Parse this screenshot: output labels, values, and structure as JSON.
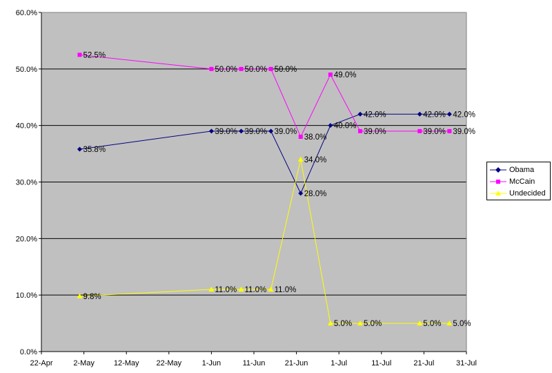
{
  "chart_data": {
    "type": "line",
    "title": "",
    "xlabel": "",
    "ylabel": "",
    "x_axis": {
      "type": "date",
      "range": [
        "2008-04-22",
        "2008-07-31"
      ],
      "ticks": [
        "2008-04-22",
        "2008-05-02",
        "2008-05-12",
        "2008-05-22",
        "2008-06-01",
        "2008-06-11",
        "2008-06-21",
        "2008-07-01",
        "2008-07-11",
        "2008-07-21",
        "2008-07-31"
      ],
      "tick_labels": [
        "22-Apr",
        "2-May",
        "12-May",
        "22-May",
        "1-Jun",
        "11-Jun",
        "21-Jun",
        "1-Jul",
        "11-Jul",
        "21-Jul",
        "31-Jul"
      ]
    },
    "y_axis": {
      "range": [
        0,
        60
      ],
      "ticks": [
        0,
        10,
        20,
        30,
        40,
        50,
        60
      ],
      "tick_labels": [
        "0.0%",
        "10.0%",
        "20.0%",
        "30.0%",
        "40.0%",
        "50.0%",
        "60.0%"
      ]
    },
    "grid": "horizontal",
    "plot_background": "#c0c0c0",
    "legend_position": "right",
    "series": [
      {
        "name": "Obama",
        "color": "#000080",
        "marker": "diamond",
        "points": [
          {
            "x": "2008-05-01",
            "y": 35.8,
            "label": "35.8%"
          },
          {
            "x": "2008-06-01",
            "y": 39.0,
            "label": "39.0%"
          },
          {
            "x": "2008-06-08",
            "y": 39.0,
            "label": "39.0%"
          },
          {
            "x": "2008-06-15",
            "y": 39.0,
            "label": "39.0%"
          },
          {
            "x": "2008-06-22",
            "y": 28.0,
            "label": "28.0%"
          },
          {
            "x": "2008-06-29",
            "y": 40.0,
            "label": "40.0%"
          },
          {
            "x": "2008-07-06",
            "y": 42.0,
            "label": "42.0%"
          },
          {
            "x": "2008-07-20",
            "y": 42.0,
            "label": "42.0%"
          },
          {
            "x": "2008-07-27",
            "y": 42.0,
            "label": "42.0%"
          }
        ]
      },
      {
        "name": "McCain",
        "color": "#ff00ff",
        "marker": "square",
        "points": [
          {
            "x": "2008-05-01",
            "y": 52.5,
            "label": "52.5%"
          },
          {
            "x": "2008-06-01",
            "y": 50.0,
            "label": "50.0%"
          },
          {
            "x": "2008-06-08",
            "y": 50.0,
            "label": "50.0%"
          },
          {
            "x": "2008-06-15",
            "y": 50.0,
            "label": "50.0%"
          },
          {
            "x": "2008-06-22",
            "y": 38.0,
            "label": "38.0%"
          },
          {
            "x": "2008-06-29",
            "y": 49.0,
            "label": "49.0%"
          },
          {
            "x": "2008-07-06",
            "y": 39.0,
            "label": "39.0%"
          },
          {
            "x": "2008-07-20",
            "y": 39.0,
            "label": "39.0%"
          },
          {
            "x": "2008-07-27",
            "y": 39.0,
            "label": "39.0%"
          }
        ]
      },
      {
        "name": "Undecided",
        "color": "#ffff00",
        "marker": "triangle",
        "points": [
          {
            "x": "2008-05-01",
            "y": 9.8,
            "label": "9.8%"
          },
          {
            "x": "2008-06-01",
            "y": 11.0,
            "label": "11.0%"
          },
          {
            "x": "2008-06-08",
            "y": 11.0,
            "label": "11.0%"
          },
          {
            "x": "2008-06-15",
            "y": 11.0,
            "label": "11.0%"
          },
          {
            "x": "2008-06-22",
            "y": 34.0,
            "label": "34.0%"
          },
          {
            "x": "2008-06-29",
            "y": 5.0,
            "label": "5.0%"
          },
          {
            "x": "2008-07-06",
            "y": 5.0,
            "label": "5.0%"
          },
          {
            "x": "2008-07-20",
            "y": 5.0,
            "label": "5.0%"
          },
          {
            "x": "2008-07-27",
            "y": 5.0,
            "label": "5.0%"
          }
        ]
      }
    ]
  }
}
